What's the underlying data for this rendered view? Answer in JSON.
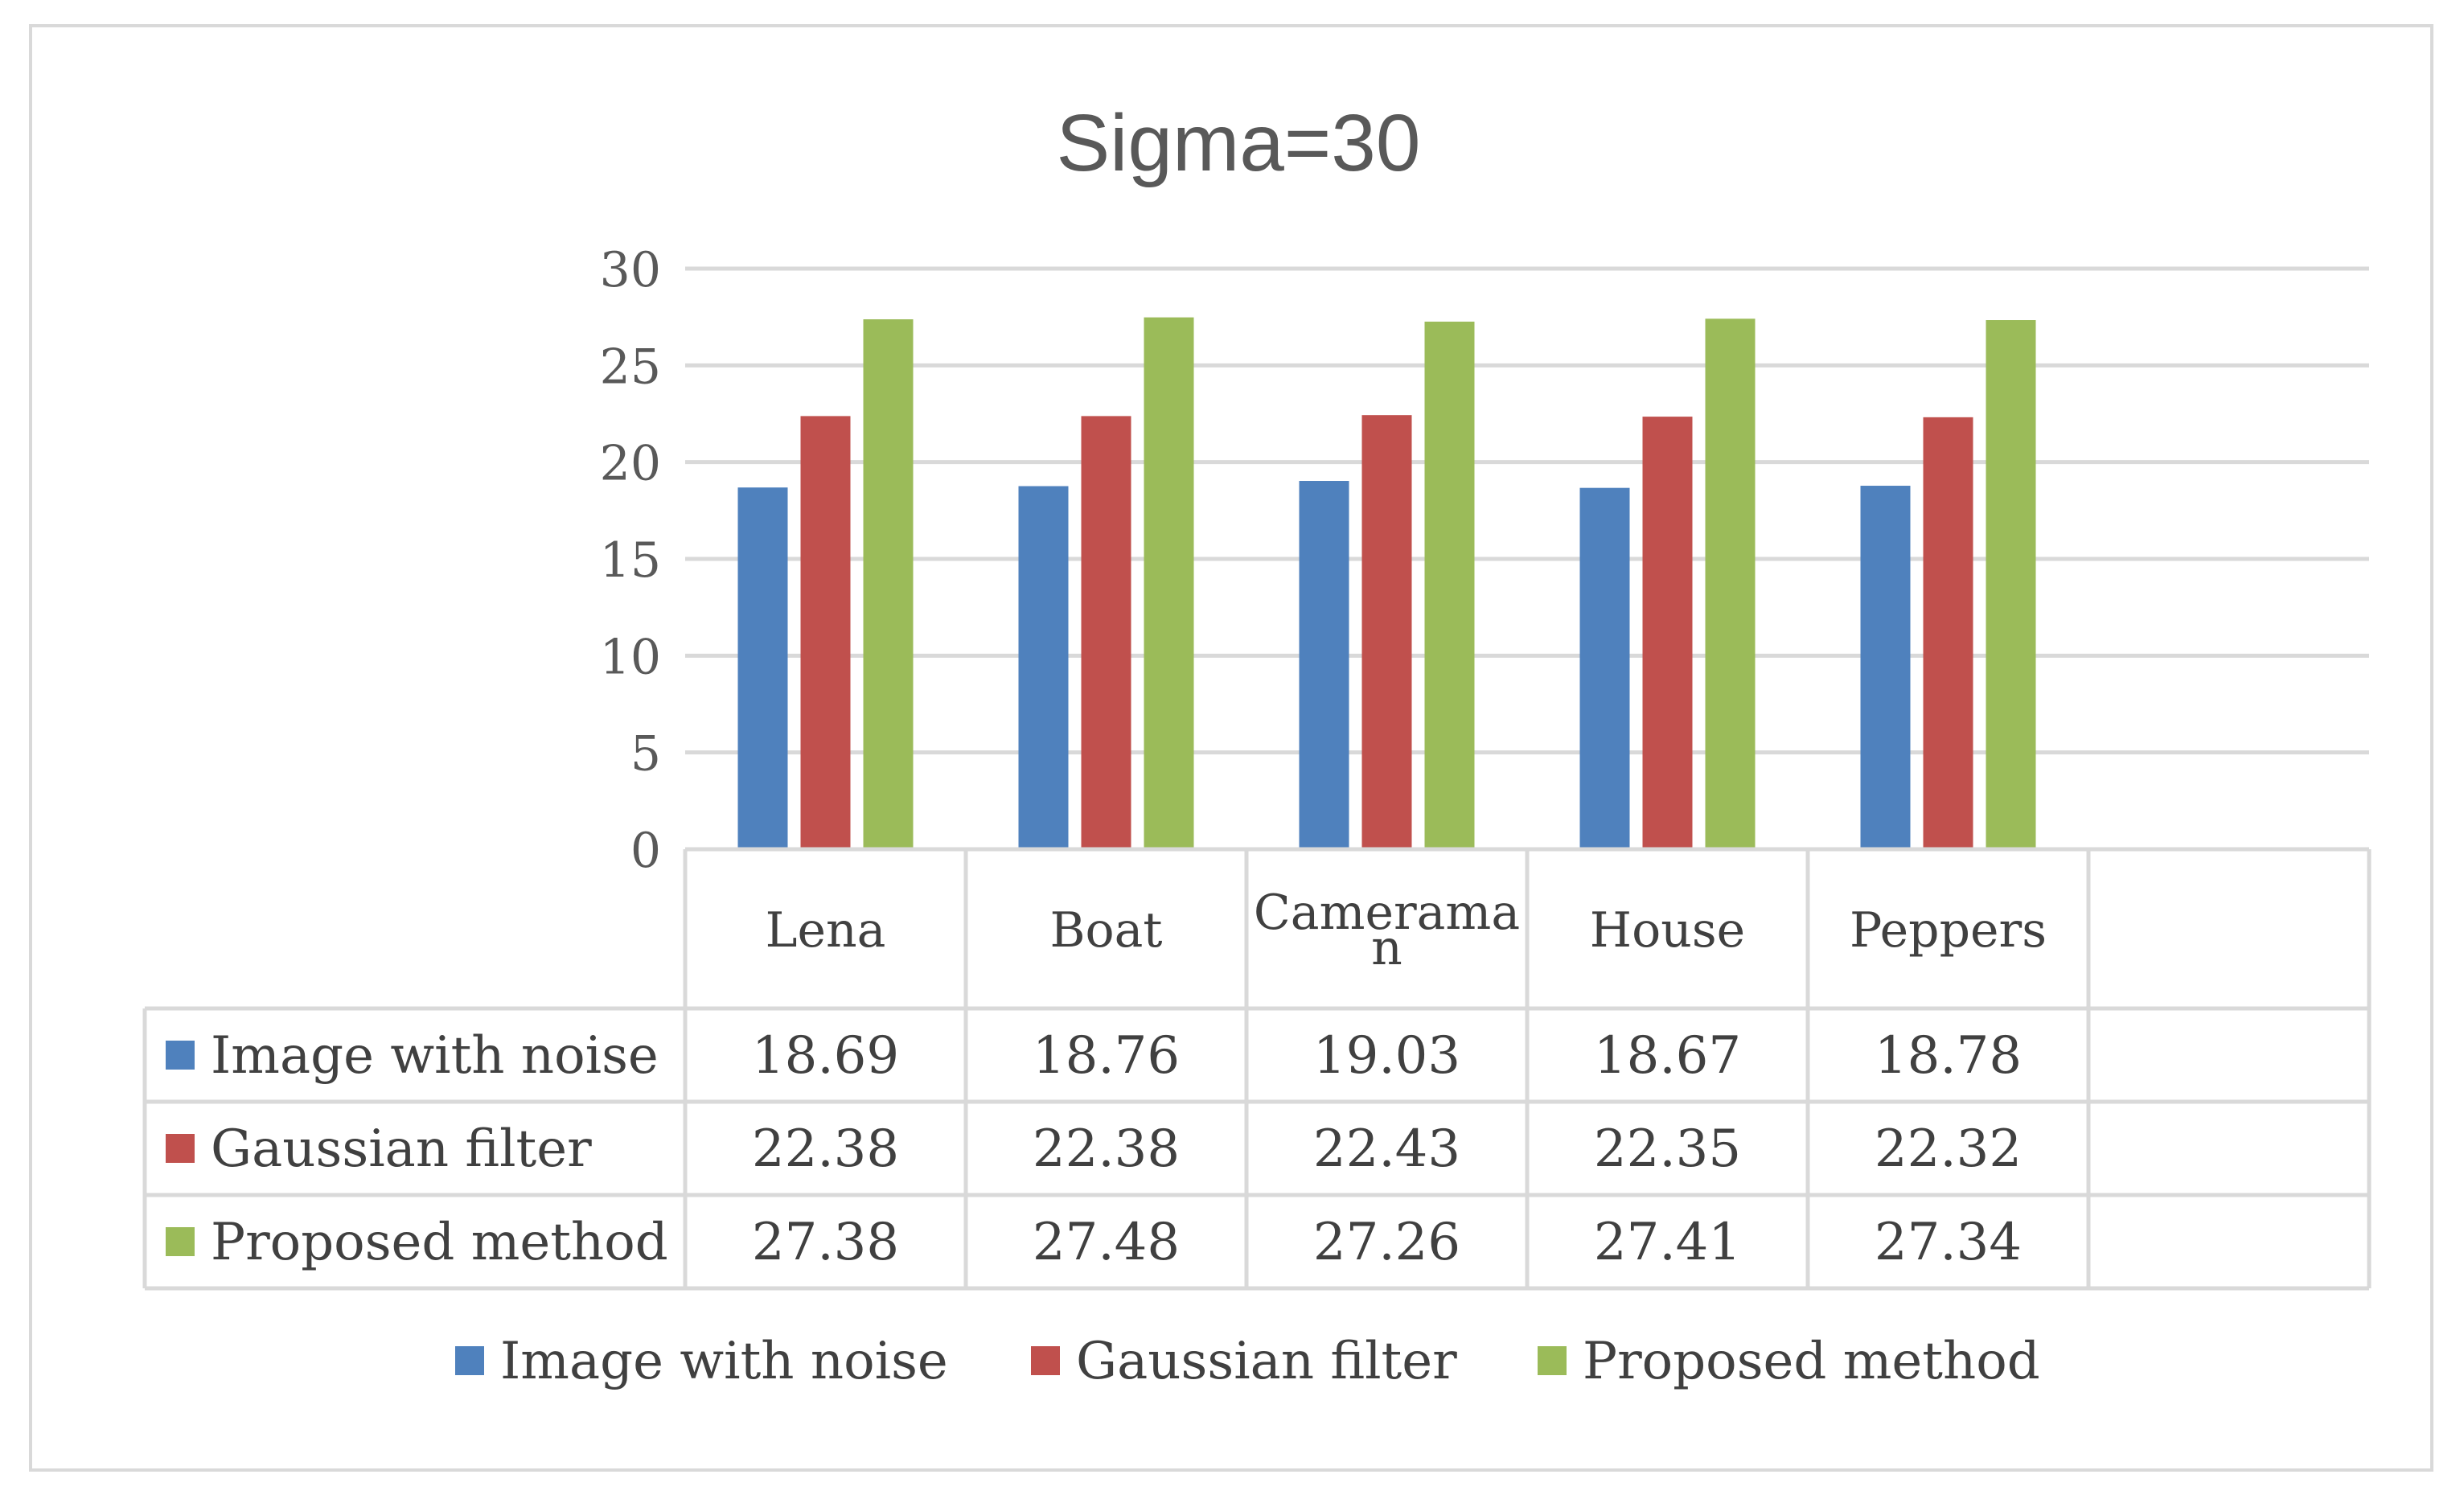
{
  "chart_data": {
    "type": "bar",
    "title": "Sigma=30",
    "categories": [
      "Lena",
      "Boat",
      "Cameraman",
      "House",
      "Peppers"
    ],
    "category_label_lines": [
      [
        "Lena"
      ],
      [
        "Boat"
      ],
      [
        "Camerama",
        "n"
      ],
      [
        "House"
      ],
      [
        "Peppers"
      ]
    ],
    "series": [
      {
        "name": "Image with noise",
        "color": "#4f81bd",
        "values": [
          18.69,
          18.76,
          19.03,
          18.67,
          18.78
        ],
        "labels": [
          "18.69",
          "18.76",
          "19.03",
          "18.67",
          "18.78"
        ]
      },
      {
        "name": "Gaussian filter",
        "color": "#c0504d",
        "values": [
          22.38,
          22.38,
          22.43,
          22.35,
          22.32
        ],
        "labels": [
          "22.38",
          "22.38",
          "22.43",
          "22.35",
          "22.32"
        ]
      },
      {
        "name": "Proposed method",
        "color": "#9bbb59",
        "values": [
          27.38,
          27.48,
          27.26,
          27.41,
          27.34
        ],
        "labels": [
          "27.38",
          "27.48",
          "27.26",
          "27.41",
          "27.34"
        ]
      }
    ],
    "ylim": [
      0,
      30
    ],
    "yticks": [
      0,
      5,
      10,
      15,
      20,
      25,
      30
    ],
    "grid": true,
    "data_table": true,
    "legend": "bottom",
    "xlabel": "",
    "ylabel": ""
  }
}
